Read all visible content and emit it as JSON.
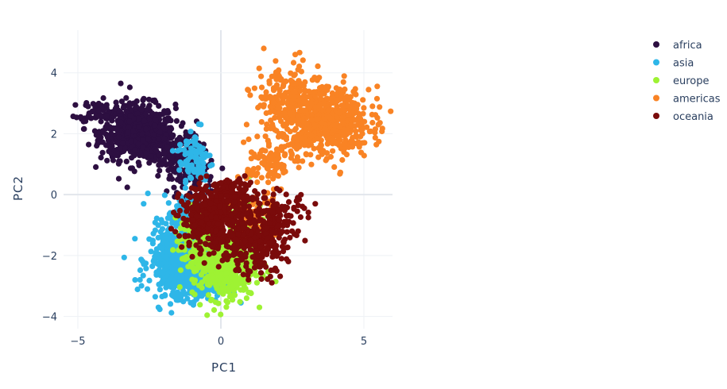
{
  "chart_data": {
    "type": "scatter",
    "xlabel": "PC1",
    "ylabel": "PC2",
    "xlim": [
      -5.5,
      6.0
    ],
    "ylim": [
      -4.4,
      5.4
    ],
    "x_ticks": [
      -5,
      0,
      5
    ],
    "x_tick_labels": [
      "−5",
      "0",
      "5"
    ],
    "y_ticks": [
      -4,
      -2,
      0,
      2,
      4
    ],
    "y_tick_labels": [
      "−4",
      "−2",
      "0",
      "2",
      "4"
    ],
    "grid": true,
    "legend_position": "top-right",
    "legend_labels": [
      "africa",
      "asia",
      "europe",
      "americas",
      "oceania"
    ],
    "series": [
      {
        "name": "africa",
        "color": "#2d0f41",
        "clusters": [
          {
            "center": [
              -2.9,
              2.05
            ],
            "spread": [
              0.65,
              0.45
            ],
            "n": 700
          },
          {
            "center": [
              -4.3,
              2.75
            ],
            "spread": [
              0.3,
              0.18
            ],
            "n": 60
          },
          {
            "center": [
              -1.6,
              1.3
            ],
            "spread": [
              0.45,
              0.35
            ],
            "n": 150
          },
          {
            "center": [
              -1.0,
              0.5
            ],
            "spread": [
              0.4,
              0.3
            ],
            "n": 80
          }
        ],
        "points": [
          [
            -4.9,
            2.55
          ],
          [
            -4.8,
            2.4
          ],
          [
            -3.5,
            3.65
          ],
          [
            -1.2,
            -0.05
          ]
        ]
      },
      {
        "name": "asia",
        "color": "#2eb6e8",
        "clusters": [
          {
            "center": [
              -1.5,
              -2.15
            ],
            "spread": [
              0.5,
              0.55
            ],
            "n": 500
          },
          {
            "center": [
              -0.8,
              -2.9
            ],
            "spread": [
              0.45,
              0.3
            ],
            "n": 180
          },
          {
            "center": [
              -0.9,
              1.15
            ],
            "spread": [
              0.3,
              0.55
            ],
            "n": 90
          },
          {
            "center": [
              -1.2,
              -0.8
            ],
            "spread": [
              0.4,
              0.4
            ],
            "n": 90
          }
        ],
        "points": [
          [
            -3.0,
            -2.8
          ],
          [
            -2.7,
            -0.3
          ],
          [
            0.7,
            -3.55
          ],
          [
            -0.7,
            2.3
          ]
        ]
      },
      {
        "name": "europe",
        "color": "#9ef233",
        "clusters": [
          {
            "center": [
              0.1,
              -2.3
            ],
            "spread": [
              0.55,
              0.55
            ],
            "n": 500
          },
          {
            "center": [
              -0.8,
              -1.6
            ],
            "spread": [
              0.4,
              0.45
            ],
            "n": 120
          },
          {
            "center": [
              1.0,
              -1.0
            ],
            "spread": [
              0.35,
              0.35
            ],
            "n": 60
          }
        ],
        "points": [
          [
            1.3,
            -0.4
          ],
          [
            1.0,
            0.6
          ],
          [
            0.9,
            -3.4
          ]
        ]
      },
      {
        "name": "americas",
        "color": "#f98324",
        "clusters": [
          {
            "center": [
              3.7,
              2.4
            ],
            "spread": [
              0.75,
              0.55
            ],
            "n": 600
          },
          {
            "center": [
              2.3,
              3.0
            ],
            "spread": [
              0.55,
              0.6
            ],
            "n": 200
          },
          {
            "center": [
              1.7,
              1.0
            ],
            "spread": [
              0.4,
              0.45
            ],
            "n": 100
          },
          {
            "center": [
              1.1,
              -0.8
            ],
            "spread": [
              0.35,
              0.45
            ],
            "n": 70
          }
        ],
        "points": [
          [
            1.5,
            4.8
          ],
          [
            2.6,
            4.6
          ],
          [
            5.3,
            2.9
          ],
          [
            0.9,
            2.3
          ]
        ]
      },
      {
        "name": "oceania",
        "color": "#7a0b0b",
        "clusters": [
          {
            "center": [
              -0.2,
              -0.75
            ],
            "spread": [
              0.6,
              0.55
            ],
            "n": 450
          },
          {
            "center": [
              1.2,
              -1.6
            ],
            "spread": [
              0.55,
              0.5
            ],
            "n": 250
          },
          {
            "center": [
              2.0,
              -0.7
            ],
            "spread": [
              0.5,
              0.4
            ],
            "n": 100
          },
          {
            "center": [
              0.6,
              0.1
            ],
            "spread": [
              0.35,
              0.3
            ],
            "n": 60
          }
        ],
        "points": [
          [
            3.3,
            -0.3
          ],
          [
            2.7,
            -1.2
          ]
        ]
      }
    ]
  }
}
